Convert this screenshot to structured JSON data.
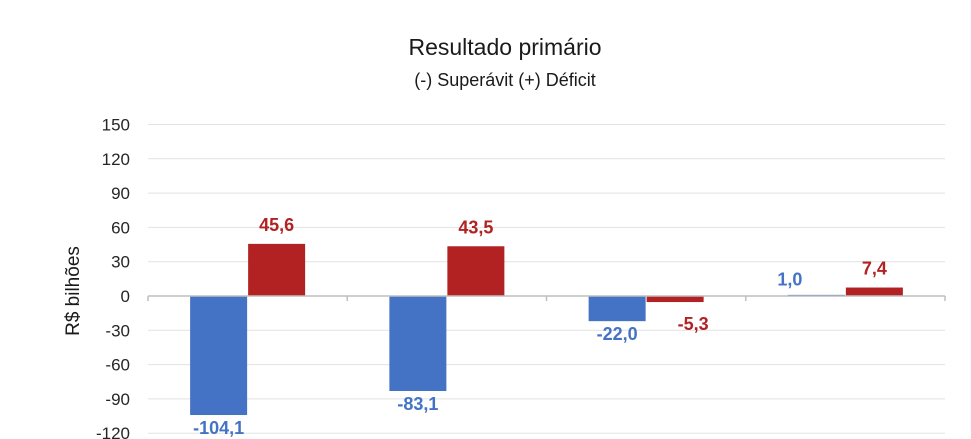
{
  "chart_data": {
    "type": "bar",
    "title": "Resultado primário",
    "subtitle": "(-) Superávit  (+) Déficit",
    "ylabel": "R$ bilhões",
    "xlabel": "",
    "ylim": [
      -120,
      150
    ],
    "yticks": [
      150,
      120,
      90,
      60,
      30,
      0,
      -30,
      -60,
      -90,
      -120
    ],
    "grid": true,
    "legend": "none",
    "categories": [
      "",
      "",
      "",
      ""
    ],
    "series": [
      {
        "color": "#4472c4",
        "values": [
          -104.1,
          -83.1,
          -22.0,
          1.0
        ],
        "labels": [
          "-104,1",
          "-83,1",
          "-22,0",
          "1,0"
        ]
      },
      {
        "color": "#b22222",
        "values": [
          45.6,
          43.5,
          -5.3,
          7.4
        ],
        "labels": [
          "45,6",
          "43,5",
          "-5,3",
          "7,4"
        ]
      }
    ]
  }
}
